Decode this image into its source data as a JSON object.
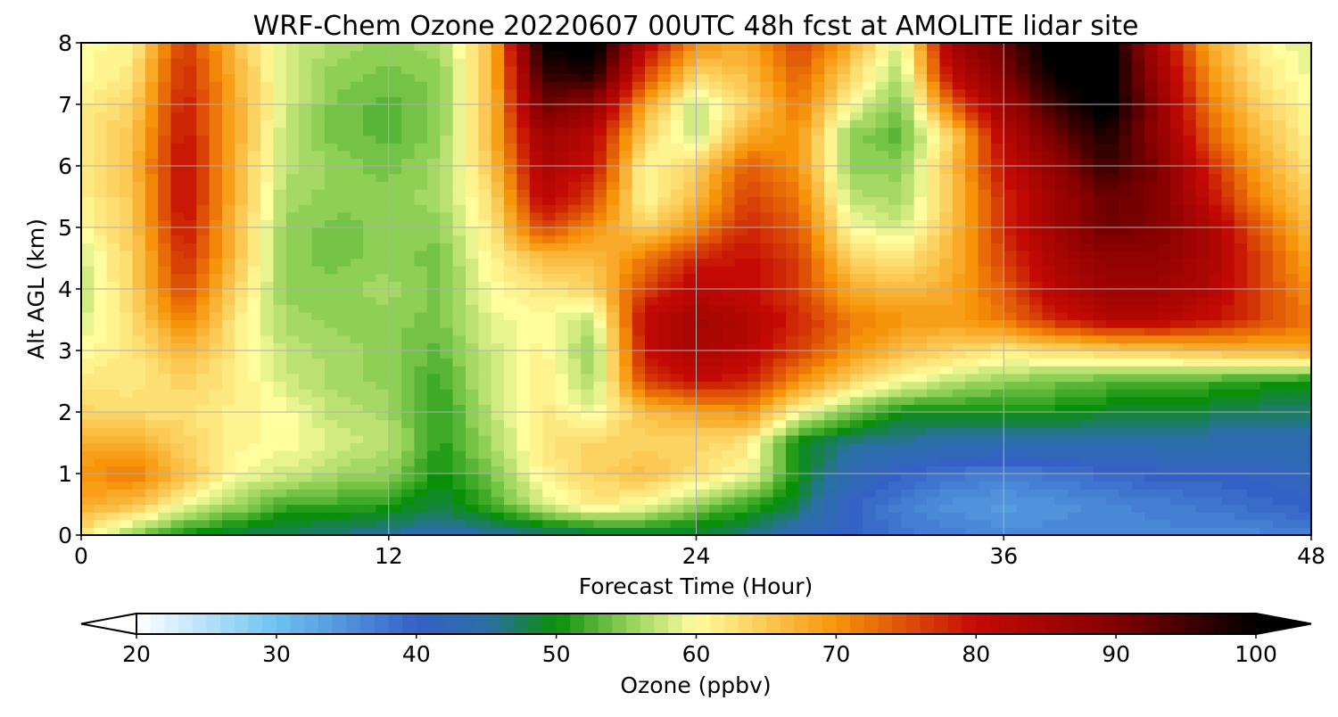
{
  "chart_data": {
    "type": "heatmap",
    "title": "WRF-Chem Ozone  20220607 00UTC 48h fcst at AMOLITE lidar site",
    "xlabel": "Forecast Time (Hour)",
    "ylabel": "Alt AGL (km)",
    "xlim": [
      0,
      48
    ],
    "ylim": [
      0,
      8
    ],
    "xticks": [
      "0",
      "12",
      "24",
      "36",
      "48"
    ],
    "yticks": [
      "0",
      "1",
      "2",
      "3",
      "4",
      "5",
      "6",
      "7",
      "8"
    ],
    "grid": true,
    "x": [
      0,
      2,
      4,
      6,
      8,
      10,
      12,
      14,
      16,
      18,
      20,
      22,
      24,
      26,
      28,
      30,
      32,
      34,
      36,
      38,
      40,
      42,
      44,
      46,
      48
    ],
    "y": [
      0,
      0.5,
      1,
      1.5,
      2,
      2.5,
      3,
      3.5,
      4,
      4.5,
      5,
      5.5,
      6,
      6.5,
      7,
      7.5,
      8
    ],
    "z": [
      [
        62,
        55,
        50,
        48,
        47,
        46,
        45,
        44,
        45,
        46,
        47,
        48,
        48,
        46,
        43,
        40,
        38,
        37,
        36,
        36,
        36,
        36,
        36,
        36,
        37
      ],
      [
        68,
        66,
        60,
        56,
        52,
        52,
        51,
        48,
        52,
        58,
        62,
        60,
        55,
        52,
        48,
        40,
        37,
        35,
        34,
        35,
        36,
        37,
        38,
        39,
        40
      ],
      [
        70,
        72,
        66,
        60,
        58,
        56,
        55,
        50,
        54,
        61,
        64,
        66,
        63,
        60,
        50,
        43,
        40,
        38,
        37,
        38,
        39,
        40,
        40,
        41,
        42
      ],
      [
        68,
        68,
        64,
        61,
        60,
        58,
        57,
        51,
        56,
        62,
        64,
        64,
        64,
        62,
        49,
        46,
        45,
        44,
        44,
        44,
        44,
        44,
        44,
        44,
        44
      ],
      [
        64,
        63,
        63,
        61,
        60,
        57,
        56,
        51,
        57,
        62,
        59,
        66,
        68,
        70,
        60,
        54,
        50,
        50,
        50,
        50,
        49,
        48,
        48,
        47,
        47
      ],
      [
        62,
        62,
        64,
        62,
        58,
        56,
        55,
        52,
        58,
        62,
        56,
        76,
        80,
        78,
        70,
        64,
        60,
        57,
        55,
        54,
        53,
        52,
        52,
        51,
        50
      ],
      [
        60,
        62,
        67,
        62,
        57,
        56,
        55,
        53,
        58,
        61,
        55,
        80,
        84,
        82,
        76,
        70,
        66,
        64,
        62,
        63,
        64,
        65,
        66,
        67,
        68
      ],
      [
        58,
        63,
        72,
        62,
        56,
        55,
        55,
        54,
        59,
        60,
        57,
        81,
        85,
        83,
        78,
        72,
        70,
        69,
        72,
        78,
        82,
        82,
        80,
        76,
        72
      ],
      [
        57,
        64,
        76,
        64,
        55,
        55,
        56,
        54,
        60,
        62,
        64,
        76,
        82,
        80,
        76,
        68,
        66,
        68,
        74,
        82,
        86,
        86,
        83,
        76,
        70
      ],
      [
        58,
        64,
        78,
        66,
        55,
        54,
        55,
        54,
        61,
        66,
        66,
        72,
        78,
        80,
        76,
        64,
        62,
        67,
        76,
        84,
        88,
        88,
        84,
        76,
        68
      ],
      [
        60,
        65,
        80,
        66,
        55,
        54,
        55,
        55,
        62,
        76,
        70,
        64,
        70,
        78,
        74,
        60,
        58,
        66,
        78,
        86,
        92,
        90,
        84,
        74,
        66
      ],
      [
        61,
        65,
        81,
        67,
        56,
        55,
        55,
        56,
        63,
        82,
        76,
        60,
        66,
        76,
        72,
        57,
        56,
        65,
        78,
        86,
        92,
        90,
        80,
        70,
        64
      ],
      [
        62,
        66,
        81,
        67,
        57,
        55,
        54,
        56,
        65,
        84,
        80,
        60,
        64,
        74,
        70,
        55,
        55,
        66,
        80,
        88,
        96,
        90,
        78,
        68,
        62
      ],
      [
        62,
        65,
        80,
        68,
        57,
        54,
        53,
        55,
        67,
        86,
        82,
        64,
        57,
        68,
        70,
        55,
        53,
        64,
        82,
        92,
        98,
        88,
        74,
        66,
        61
      ],
      [
        61,
        64,
        79,
        68,
        58,
        54,
        53,
        55,
        66,
        92,
        88,
        68,
        57,
        64,
        72,
        60,
        54,
        74,
        86,
        96,
        102,
        88,
        72,
        64,
        60
      ],
      [
        60,
        62,
        78,
        67,
        58,
        55,
        54,
        55,
        66,
        96,
        98,
        76,
        64,
        66,
        74,
        64,
        56,
        82,
        90,
        100,
        102,
        86,
        70,
        62,
        59
      ],
      [
        60,
        61,
        77,
        66,
        58,
        56,
        55,
        56,
        66,
        100,
        102,
        82,
        70,
        68,
        76,
        68,
        58,
        86,
        92,
        102,
        102,
        84,
        68,
        61,
        58
      ]
    ],
    "colorbar": {
      "label": "Ozone  (ppbv)",
      "range": [
        20,
        100
      ],
      "ticks": [
        "20",
        "30",
        "40",
        "50",
        "60",
        "70",
        "80",
        "90",
        "100"
      ],
      "extend": "both",
      "stops": [
        {
          "v": 20,
          "c": "#ffffff"
        },
        {
          "v": 30,
          "c": "#6cc3f2"
        },
        {
          "v": 40,
          "c": "#3461c6"
        },
        {
          "v": 45,
          "c": "#2a6fa6"
        },
        {
          "v": 50,
          "c": "#0a8f0a"
        },
        {
          "v": 55,
          "c": "#8ecf55"
        },
        {
          "v": 60,
          "c": "#fffd9e"
        },
        {
          "v": 70,
          "c": "#f7940a"
        },
        {
          "v": 80,
          "c": "#c40a04"
        },
        {
          "v": 90,
          "c": "#840000"
        },
        {
          "v": 100,
          "c": "#000000"
        }
      ]
    }
  }
}
